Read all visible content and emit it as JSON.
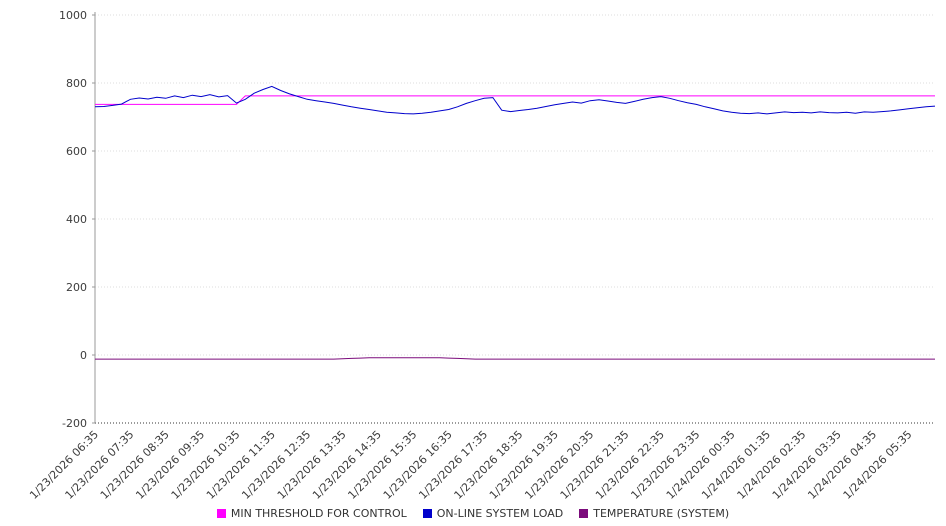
{
  "chart_data": {
    "type": "line",
    "title": "",
    "grid": "dotted-horizontal",
    "legend_position": "bottom",
    "axis_color": "#9a9a9a",
    "grid_color": "#dedede",
    "tick_text_color": "#3c3c3c",
    "ylim": [
      -200,
      1000
    ],
    "yticks": [
      -200,
      0,
      200,
      400,
      600,
      800,
      1000
    ],
    "points_per_label": 4,
    "x_labels": [
      "1/23/2026 06:35",
      "1/23/2026 07:35",
      "1/23/2026 08:35",
      "1/23/2026 09:35",
      "1/23/2026 10:35",
      "1/23/2026 11:35",
      "1/23/2026 12:35",
      "1/23/2026 13:35",
      "1/23/2026 14:35",
      "1/23/2026 15:35",
      "1/23/2026 16:35",
      "1/23/2026 17:35",
      "1/23/2026 18:35",
      "1/23/2026 19:35",
      "1/23/2026 20:35",
      "1/23/2026 21:35",
      "1/23/2026 22:35",
      "1/23/2026 23:35",
      "1/24/2026 00:35",
      "1/24/2026 01:35",
      "1/24/2026 02:35",
      "1/24/2026 03:35",
      "1/24/2026 04:35",
      "1/24/2026 05:35"
    ],
    "series": [
      {
        "name": "MIN THRESHOLD FOR CONTROL",
        "color": "#ff00ff",
        "values": [
          737,
          737,
          737,
          737,
          737,
          737,
          737,
          737,
          737,
          737,
          737,
          737,
          737,
          737,
          737,
          737,
          737,
          762,
          762,
          762,
          762,
          762,
          762,
          762,
          762,
          762,
          762,
          762,
          762,
          762,
          762,
          762,
          762,
          762,
          762,
          762,
          762,
          762,
          762,
          762,
          762,
          762,
          762,
          762,
          762,
          762,
          762,
          762,
          762,
          762,
          762,
          762,
          762,
          762,
          762,
          762,
          762,
          762,
          762,
          762,
          762,
          762,
          762,
          762,
          762,
          762,
          762,
          762,
          762,
          762,
          762,
          762,
          762,
          762,
          762,
          762,
          762,
          762,
          762,
          762,
          762,
          762,
          762,
          762,
          762,
          762,
          762,
          762,
          762,
          762,
          762,
          762,
          762,
          762,
          762,
          762
        ]
      },
      {
        "name": "ON-LINE SYSTEM LOAD",
        "color": "#0000cc",
        "values": [
          730,
          731,
          734,
          738,
          752,
          756,
          753,
          758,
          755,
          762,
          757,
          764,
          760,
          766,
          759,
          763,
          741,
          752,
          770,
          781,
          790,
          778,
          768,
          760,
          752,
          748,
          744,
          740,
          735,
          730,
          726,
          722,
          718,
          714,
          712,
          710,
          709,
          711,
          714,
          718,
          722,
          730,
          740,
          748,
          755,
          757,
          720,
          716,
          719,
          722,
          726,
          731,
          736,
          740,
          744,
          741,
          748,
          751,
          747,
          743,
          740,
          746,
          752,
          757,
          760,
          755,
          748,
          742,
          737,
          730,
          724,
          718,
          714,
          711,
          710,
          712,
          709,
          712,
          715,
          713,
          714,
          712,
          715,
          713,
          712,
          714,
          711,
          715,
          714,
          716,
          718,
          721,
          724,
          727,
          730,
          732
        ]
      },
      {
        "name": "TEMPERATURE (SYSTEM)",
        "color": "#7b0b7b",
        "values": [
          -12,
          -12,
          -12,
          -12,
          -12,
          -12,
          -12,
          -12,
          -12,
          -12,
          -12,
          -12,
          -12,
          -12,
          -12,
          -12,
          -12,
          -12,
          -12,
          -12,
          -12,
          -12,
          -12,
          -12,
          -12,
          -12,
          -12,
          -12,
          -11,
          -10,
          -9,
          -8,
          -8,
          -8,
          -8,
          -8,
          -8,
          -8,
          -8,
          -8,
          -9,
          -10,
          -11,
          -12,
          -12,
          -12,
          -12,
          -12,
          -12,
          -12,
          -12,
          -12,
          -12,
          -12,
          -12,
          -12,
          -12,
          -12,
          -12,
          -12,
          -12,
          -12,
          -12,
          -12,
          -12,
          -12,
          -12,
          -12,
          -12,
          -12,
          -12,
          -12,
          -12,
          -12,
          -12,
          -12,
          -12,
          -12,
          -12,
          -12,
          -12,
          -12,
          -12,
          -12,
          -12,
          -12,
          -12,
          -12,
          -12,
          -12,
          -12,
          -12,
          -12,
          -12,
          -12,
          -12
        ]
      }
    ]
  }
}
